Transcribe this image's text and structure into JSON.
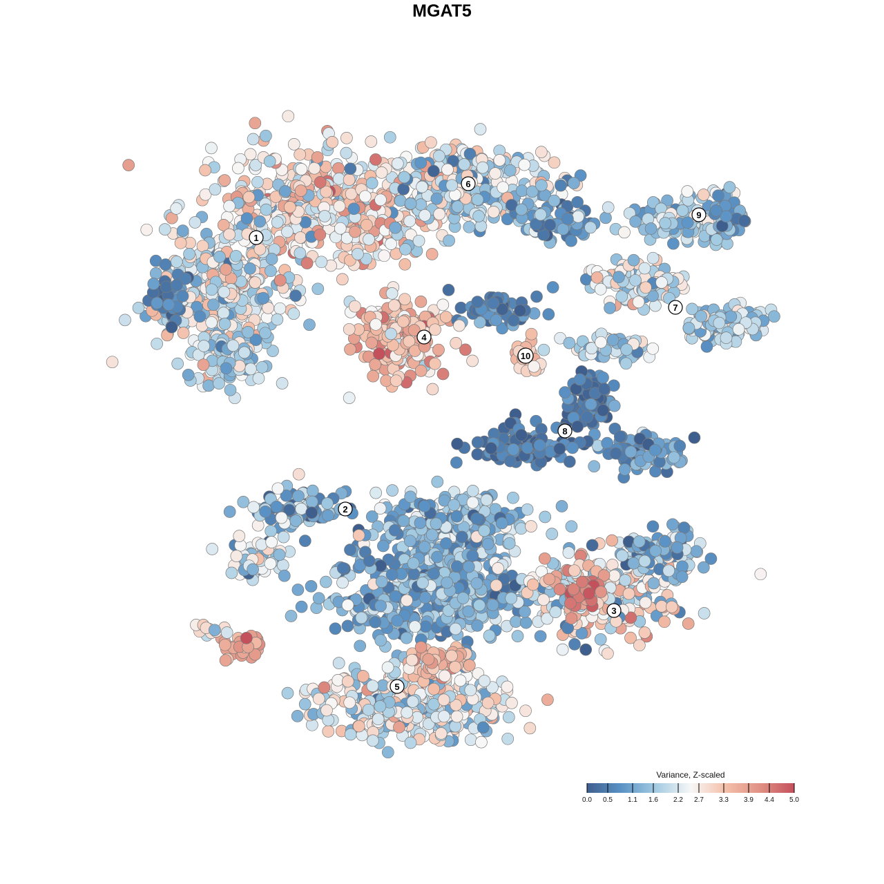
{
  "chart_data": {
    "type": "scatter",
    "title": "MGAT5",
    "xlabel": "",
    "ylabel": "",
    "grid": false,
    "legend": {
      "title": "Variance, Z-scaled",
      "placement": "bottom-right",
      "ticks": [
        "0.0",
        "0.5",
        "1.1",
        "1.6",
        "2.2",
        "2.7",
        "3.3",
        "3.9",
        "4.4",
        "5.0"
      ],
      "range": [
        0,
        5
      ],
      "colors": [
        "#3e5f8e",
        "#5b93c6",
        "#a3cbe2",
        "#f7f7f7",
        "#f4c0aa",
        "#e09184",
        "#c4505c"
      ]
    },
    "cluster_labels": [
      "1",
      "2",
      "3",
      "4",
      "5",
      "6",
      "7",
      "8",
      "9",
      "10"
    ]
  }
}
